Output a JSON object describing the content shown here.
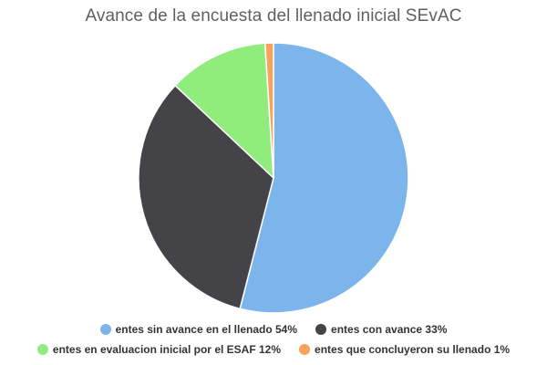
{
  "chart_data": {
    "type": "pie",
    "title": "Avance de la encuesta del llenado inicial SEvAC",
    "categories": [
      "entes sin avance en el llenado 54%",
      "entes con avance 33%",
      "entes en evaluacion inicial por el ESAF 12%",
      "entes que concluyeron su llenado 1%"
    ],
    "values": [
      54,
      33,
      12,
      1
    ],
    "colors": [
      "#7cb5ec",
      "#434348",
      "#90ed7d",
      "#f7a35c"
    ],
    "legend_placement": "bottom"
  }
}
